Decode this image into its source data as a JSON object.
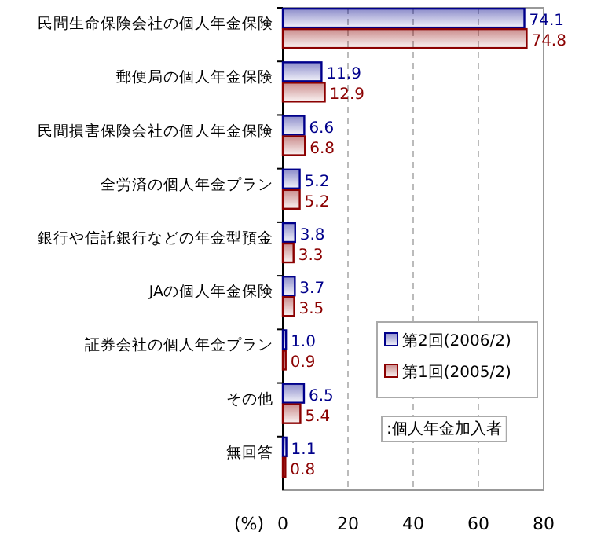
{
  "chart_data": {
    "type": "bar",
    "orientation": "horizontal",
    "categories": [
      "民間生命保険会社の個人年金保険",
      "郵便局の個人年金保険",
      "民間損害保険会社の個人年金保険",
      "全労済の個人年金プラン",
      "銀行や信託銀行などの年金型預金",
      "JAの個人年金保険",
      "証券会社の個人年金プラン",
      "その他",
      "無回答"
    ],
    "series": [
      {
        "name": "第2回(2006/2)",
        "color": "#00008b",
        "values": [
          74.1,
          11.9,
          6.6,
          5.2,
          3.8,
          3.7,
          1.0,
          6.5,
          1.1
        ],
        "value_labels": [
          "74.1",
          "11.9",
          "6.6",
          "5.2",
          "3.8",
          "3.7",
          "1.0",
          "6.5",
          "1.1"
        ]
      },
      {
        "name": "第1回(2005/2)",
        "color": "#8b0000",
        "values": [
          74.8,
          12.9,
          6.8,
          5.2,
          3.3,
          3.5,
          0.9,
          5.4,
          0.8
        ],
        "value_labels": [
          "74.8",
          "12.9",
          "6.8",
          "5.2",
          "3.3",
          "3.5",
          "0.9",
          "5.4",
          "0.8"
        ]
      }
    ],
    "xlim": [
      0,
      80
    ],
    "xticks": [
      0,
      20,
      40,
      60,
      80
    ],
    "xlabel": "(%)",
    "grid": "x",
    "legend": "right",
    "annotations": [
      ":個人年金加入者"
    ]
  }
}
